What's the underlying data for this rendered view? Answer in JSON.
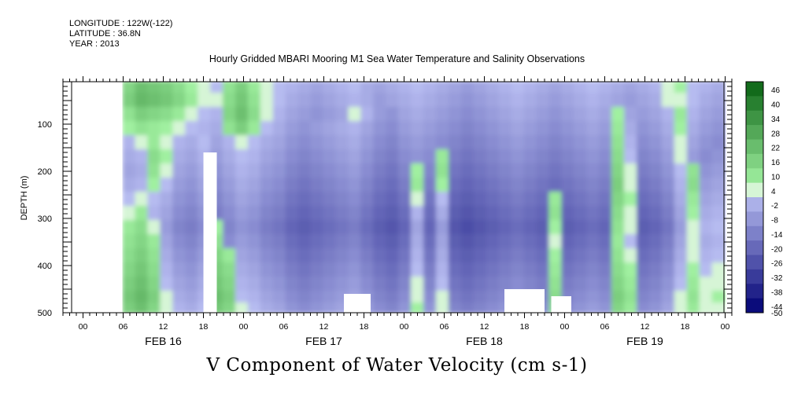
{
  "header": {
    "longitude": "LONGITUDE : 122W(-122)",
    "latitude": "LATITUDE : 36.8N",
    "year": "YEAR : 2013",
    "title": "Hourly Gridded MBARI Mooring M1 Sea Water Temperature and Salinity Observations"
  },
  "footer": {
    "variable_title": "V Component of Water Velocity (cm s-1)"
  },
  "chart_data": {
    "type": "heatmap",
    "title": "Hourly Gridded MBARI Mooring M1 Sea Water Temperature and Salinity Observations",
    "xlabel": "",
    "ylabel": "DEPTH (m)",
    "colorbar_label": "V Component of Water Velocity (cm s-1)",
    "y_ticks": [
      "100",
      "200",
      "300",
      "400",
      "500"
    ],
    "y_tick_values": [
      100,
      200,
      300,
      400,
      500
    ],
    "ylim": [
      500,
      10
    ],
    "y_inverted": true,
    "x_tick_labels": [
      "00",
      "06",
      "12",
      "18",
      "00",
      "06",
      "12",
      "18",
      "00",
      "06",
      "12",
      "18",
      "00",
      "06",
      "12",
      "18",
      "00"
    ],
    "x_tick_hours": [
      0,
      6,
      12,
      18,
      24,
      30,
      36,
      42,
      48,
      54,
      60,
      66,
      72,
      78,
      84,
      90,
      96
    ],
    "x_date_labels": [
      "FEB 16",
      "FEB 17",
      "FEB 18",
      "FEB 19"
    ],
    "x_date_hours": [
      12,
      36,
      60,
      84
    ],
    "xlim_hours": [
      -3,
      97
    ],
    "data_extent_hours": [
      6,
      96
    ],
    "colorbar_levels": [
      46,
      40,
      34,
      28,
      22,
      16,
      10,
      4,
      -2,
      -8,
      -14,
      -20,
      -26,
      -32,
      -38,
      -44,
      -50
    ],
    "colorbar_range": [
      -50,
      50
    ],
    "rows_depths": [
      20,
      50,
      80,
      110,
      140,
      170,
      200,
      230,
      260,
      290,
      320,
      350,
      380,
      410,
      440,
      470,
      490
    ],
    "rows": [
      [
        12,
        18,
        16,
        14,
        10,
        4,
        0,
        -2,
        8,
        14,
        6,
        0,
        -2,
        -4,
        -6,
        -8,
        -6,
        -4,
        -2,
        -6,
        -8,
        -6,
        -4,
        -2,
        -4,
        -6,
        -8,
        -10,
        -8,
        -6,
        -4,
        -2,
        -4,
        -6,
        -8,
        -6,
        -4,
        -2,
        -4,
        -6,
        -8,
        -6,
        -4,
        2,
        4,
        -2,
        -4,
        -6
      ],
      [
        14,
        20,
        18,
        16,
        12,
        6,
        2,
        0,
        10,
        16,
        8,
        2,
        -2,
        -6,
        -8,
        -10,
        -8,
        -6,
        -4,
        -6,
        -10,
        -8,
        -6,
        -4,
        -6,
        -8,
        -10,
        -12,
        -10,
        -8,
        -6,
        -4,
        -6,
        -8,
        -10,
        -8,
        -6,
        -4,
        -6,
        -8,
        -10,
        -8,
        -6,
        0,
        2,
        -2,
        -6,
        -8
      ],
      [
        8,
        14,
        12,
        10,
        6,
        2,
        -2,
        -4,
        12,
        18,
        10,
        2,
        -4,
        -8,
        -10,
        -12,
        -10,
        -8,
        2,
        -4,
        -10,
        -12,
        -8,
        -6,
        -8,
        -10,
        -12,
        -14,
        -12,
        -10,
        -8,
        -6,
        -8,
        -10,
        -12,
        -10,
        -8,
        -6,
        -8,
        4,
        -8,
        -10,
        -8,
        -4,
        6,
        -4,
        -8,
        -10
      ],
      [
        4,
        8,
        6,
        4,
        2,
        -2,
        -4,
        -6,
        8,
        14,
        6,
        -2,
        -6,
        -10,
        -12,
        -10,
        -8,
        -6,
        -4,
        -8,
        -12,
        -14,
        -10,
        -8,
        -10,
        -12,
        -14,
        -16,
        -14,
        -12,
        -10,
        -8,
        -10,
        -12,
        -14,
        -12,
        -10,
        -8,
        -10,
        6,
        -6,
        -12,
        -10,
        -6,
        4,
        -6,
        -10,
        -12
      ],
      [
        -4,
        0,
        6,
        2,
        -4,
        -6,
        -2,
        -8,
        -4,
        2,
        -2,
        -6,
        -8,
        -12,
        -14,
        -12,
        -10,
        -8,
        -6,
        -10,
        -14,
        -16,
        -12,
        -10,
        -12,
        -14,
        -16,
        -18,
        -16,
        -14,
        -12,
        -10,
        -12,
        -14,
        -16,
        -14,
        -12,
        -10,
        -12,
        8,
        -4,
        -14,
        -12,
        -8,
        2,
        -8,
        -12,
        -14
      ],
      [
        -6,
        -4,
        10,
        4,
        -6,
        -8,
        -4,
        -10,
        -6,
        -2,
        -4,
        -8,
        -10,
        -14,
        -16,
        -14,
        -12,
        -10,
        -8,
        -12,
        -16,
        -18,
        -14,
        -12,
        -14,
        6,
        -18,
        -20,
        -18,
        -16,
        -14,
        -12,
        -14,
        -16,
        -18,
        -16,
        -14,
        -12,
        -14,
        10,
        -2,
        -16,
        -14,
        -10,
        0,
        -10,
        -14,
        -12
      ],
      [
        -8,
        -6,
        8,
        2,
        -8,
        -10,
        -6,
        -12,
        -8,
        -4,
        -6,
        -10,
        -12,
        -16,
        -18,
        -16,
        -14,
        -12,
        -10,
        -14,
        -18,
        -20,
        -16,
        4,
        -16,
        8,
        -20,
        -22,
        -20,
        -18,
        -16,
        -14,
        -16,
        -18,
        -20,
        -18,
        -16,
        -14,
        -16,
        12,
        0,
        -18,
        -16,
        -12,
        -2,
        8,
        -12,
        -10
      ],
      [
        -6,
        -4,
        4,
        -2,
        -10,
        -12,
        -8,
        -14,
        -10,
        -6,
        -8,
        -12,
        -14,
        -18,
        -20,
        -18,
        -16,
        -14,
        -12,
        -16,
        -20,
        -22,
        -18,
        6,
        -18,
        4,
        -22,
        -24,
        -22,
        -20,
        -18,
        -16,
        -18,
        -20,
        -22,
        -20,
        -18,
        -16,
        -18,
        14,
        2,
        -20,
        -18,
        -14,
        -4,
        10,
        -10,
        -8
      ],
      [
        -2,
        2,
        -2,
        -6,
        -12,
        -14,
        -10,
        -16,
        -12,
        -8,
        -10,
        -14,
        -16,
        -20,
        -22,
        -20,
        -18,
        -16,
        -14,
        -18,
        -22,
        -24,
        -20,
        2,
        -20,
        -2,
        -24,
        -26,
        -24,
        -22,
        -20,
        -18,
        -20,
        -22,
        6,
        -22,
        -20,
        -18,
        -20,
        12,
        4,
        -22,
        -20,
        -16,
        -6,
        6,
        -8,
        -6
      ],
      [
        2,
        6,
        -4,
        -8,
        -14,
        -16,
        -12,
        -18,
        -14,
        -10,
        -12,
        -16,
        -18,
        -22,
        -24,
        -22,
        -20,
        -18,
        -16,
        -20,
        -24,
        -26,
        -22,
        -4,
        -22,
        -6,
        -26,
        -28,
        -26,
        -24,
        -22,
        -20,
        -22,
        -24,
        8,
        -24,
        -22,
        -20,
        -22,
        10,
        2,
        -24,
        -22,
        -18,
        -8,
        4,
        -6,
        -4
      ],
      [
        6,
        10,
        2,
        -10,
        -16,
        -18,
        -14,
        4,
        -16,
        -12,
        -14,
        -18,
        -20,
        -24,
        -26,
        -24,
        -22,
        -20,
        -18,
        -22,
        -26,
        -28,
        -24,
        -8,
        -24,
        -10,
        -28,
        -30,
        -28,
        -26,
        -24,
        -22,
        -24,
        -26,
        4,
        -26,
        -24,
        -22,
        -24,
        8,
        0,
        -26,
        -24,
        -20,
        -10,
        2,
        -4,
        -2
      ],
      [
        8,
        12,
        6,
        -8,
        -14,
        -16,
        -12,
        8,
        -14,
        -10,
        -12,
        -16,
        -18,
        -22,
        -24,
        -22,
        -20,
        -18,
        -16,
        -20,
        -24,
        -26,
        -22,
        -6,
        -22,
        -8,
        -26,
        -28,
        -26,
        -24,
        -22,
        -20,
        -22,
        -24,
        2,
        -24,
        -22,
        -20,
        -22,
        6,
        -2,
        -24,
        -22,
        -18,
        -8,
        0,
        -6,
        -4
      ],
      [
        10,
        14,
        8,
        -6,
        -12,
        -14,
        -10,
        12,
        6,
        -8,
        -10,
        -14,
        -16,
        -20,
        -22,
        -20,
        -18,
        -16,
        -14,
        -18,
        -22,
        -24,
        -20,
        -4,
        -20,
        -6,
        -24,
        -26,
        -24,
        -22,
        -20,
        -18,
        -20,
        -22,
        4,
        -22,
        -20,
        -18,
        -20,
        8,
        2,
        -22,
        -20,
        -16,
        -6,
        2,
        -4,
        -2
      ],
      [
        12,
        16,
        10,
        -4,
        -10,
        -12,
        -8,
        14,
        10,
        -6,
        -8,
        -12,
        -14,
        -18,
        -20,
        -18,
        -16,
        -14,
        -12,
        -16,
        -20,
        -22,
        -18,
        -2,
        -18,
        -4,
        -22,
        -24,
        -22,
        -20,
        -18,
        -16,
        -18,
        -20,
        6,
        -20,
        -18,
        -16,
        -18,
        10,
        4,
        -20,
        -18,
        -14,
        -4,
        4,
        -2,
        0
      ],
      [
        14,
        18,
        12,
        -2,
        -8,
        -10,
        -6,
        16,
        12,
        -4,
        -6,
        -10,
        -12,
        -16,
        -18,
        -16,
        -14,
        -12,
        -10,
        -14,
        -18,
        -20,
        -16,
        0,
        -16,
        -2,
        -20,
        -22,
        -20,
        -18,
        -16,
        -14,
        -16,
        -18,
        8,
        -18,
        -16,
        -14,
        -16,
        12,
        6,
        -18,
        -16,
        -12,
        -2,
        6,
        0,
        2
      ],
      [
        16,
        20,
        14,
        0,
        -6,
        -8,
        -4,
        18,
        14,
        -2,
        -4,
        -8,
        -10,
        -14,
        -16,
        -14,
        -12,
        -10,
        -8,
        -12,
        -16,
        -18,
        -14,
        2,
        -14,
        0,
        -18,
        -20,
        -18,
        -16,
        -14,
        -12,
        -14,
        -16,
        10,
        -16,
        -14,
        -12,
        -14,
        14,
        8,
        -16,
        -14,
        -10,
        0,
        8,
        2,
        4
      ],
      [
        14,
        18,
        12,
        2,
        -4,
        -6,
        -2,
        16,
        12,
        0,
        -2,
        -6,
        -8,
        -12,
        -14,
        -12,
        -10,
        -8,
        -6,
        -10,
        -14,
        -16,
        -12,
        4,
        -12,
        2,
        -16,
        -18,
        -16,
        -14,
        -12,
        -10,
        -12,
        -14,
        8,
        -14,
        -12,
        -10,
        -12,
        12,
        6,
        -14,
        -12,
        -8,
        2,
        6,
        0,
        2
      ]
    ],
    "missing": [
      {
        "x_hours": [
          18,
          20
        ],
        "depth_m": [
          160,
          500
        ]
      },
      {
        "x_hours": [
          39,
          43
        ],
        "depth_m": [
          460,
          500
        ]
      },
      {
        "x_hours": [
          63,
          69
        ],
        "depth_m": [
          450,
          500
        ]
      },
      {
        "x_hours": [
          70,
          73
        ],
        "depth_m": [
          465,
          500
        ]
      }
    ]
  }
}
